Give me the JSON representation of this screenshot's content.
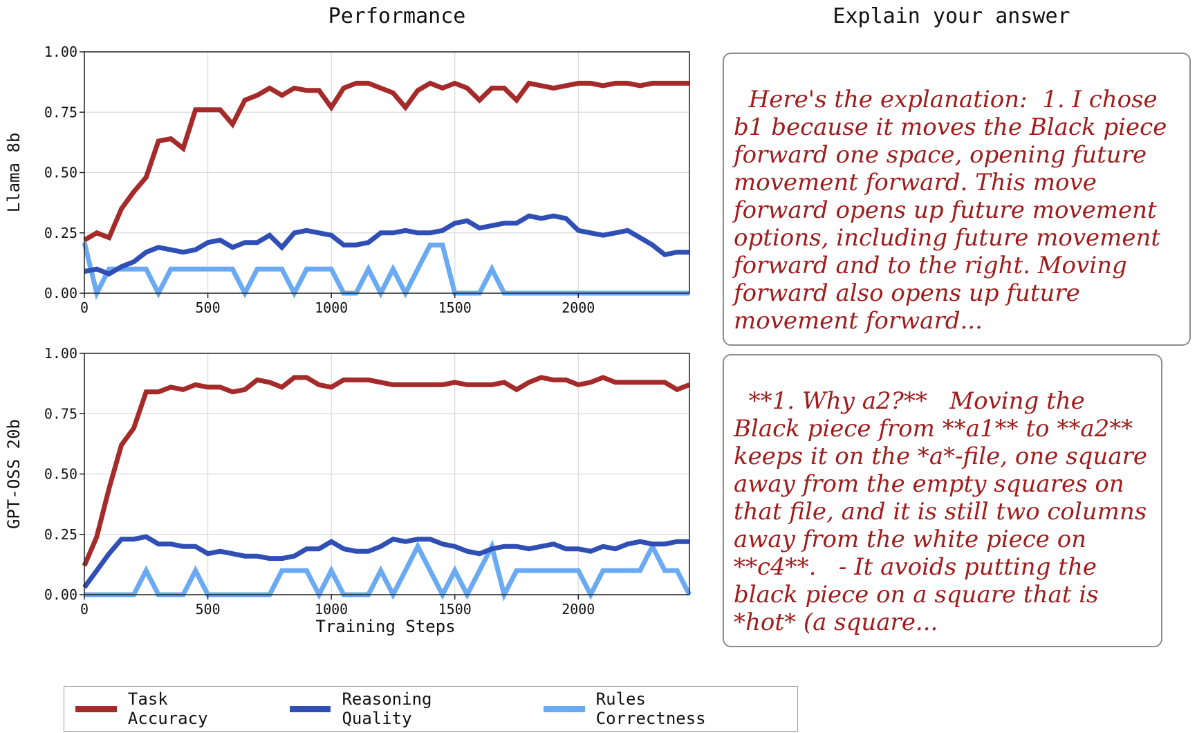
{
  "headers": {
    "left": "Performance",
    "right": "Explain your answer"
  },
  "colors": {
    "task": "#a52a2a",
    "reasoning": "#2f4fb5",
    "rules": "#6aaaf2"
  },
  "legend": [
    {
      "key": "task",
      "label": "Task Accuracy"
    },
    {
      "key": "reasoning",
      "label": "Reasoning Quality"
    },
    {
      "key": "rules",
      "label": "Rules Correctness"
    }
  ],
  "quotes": [
    "Here's the explanation:  1. I chose b1 because it moves the Black piece forward one space, opening future movement forward. This move forward opens up future movement options, including future movement forward and to the right. Moving forward also opens up future movement forward...",
    "**1. Why a2?**   Moving the Black piece from **a1** to **a2** keeps it on the *a*-file, one square away from the empty squares on that file, and it is still two columns away from the white piece on **c4**.   - It avoids putting the black piece on a square that is *hot* (a square..."
  ],
  "chart_data": [
    {
      "type": "line",
      "ylabel": "Llama 8b",
      "xlabel": "",
      "xlim": [
        0,
        2450
      ],
      "ylim": [
        0,
        1
      ],
      "xticks": [
        0,
        500,
        1000,
        1500,
        2000
      ],
      "yticks": [
        "0.00",
        "0.25",
        "0.50",
        "0.75",
        "1.00"
      ],
      "grid": true,
      "x": [
        0,
        50,
        100,
        150,
        200,
        250,
        300,
        350,
        400,
        450,
        500,
        550,
        600,
        650,
        700,
        750,
        800,
        850,
        900,
        950,
        1000,
        1050,
        1100,
        1150,
        1200,
        1250,
        1300,
        1350,
        1400,
        1450,
        1500,
        1550,
        1600,
        1650,
        1700,
        1750,
        1800,
        1850,
        1900,
        1950,
        2000,
        2050,
        2100,
        2150,
        2200,
        2250,
        2300,
        2350,
        2400,
        2450
      ],
      "series": [
        {
          "name": "Task Accuracy",
          "key": "task",
          "values": [
            0.22,
            0.25,
            0.23,
            0.35,
            0.42,
            0.48,
            0.63,
            0.64,
            0.6,
            0.76,
            0.76,
            0.76,
            0.7,
            0.8,
            0.82,
            0.85,
            0.82,
            0.85,
            0.84,
            0.84,
            0.77,
            0.85,
            0.87,
            0.87,
            0.85,
            0.83,
            0.77,
            0.84,
            0.87,
            0.85,
            0.87,
            0.85,
            0.8,
            0.85,
            0.85,
            0.8,
            0.87,
            0.86,
            0.85,
            0.86,
            0.87,
            0.87,
            0.86,
            0.87,
            0.87,
            0.86,
            0.87,
            0.87,
            0.87,
            0.87
          ]
        },
        {
          "name": "Reasoning Quality",
          "key": "reasoning",
          "values": [
            0.09,
            0.1,
            0.08,
            0.11,
            0.13,
            0.17,
            0.19,
            0.18,
            0.17,
            0.18,
            0.21,
            0.22,
            0.19,
            0.21,
            0.21,
            0.24,
            0.19,
            0.25,
            0.26,
            0.25,
            0.24,
            0.2,
            0.2,
            0.21,
            0.25,
            0.25,
            0.26,
            0.25,
            0.25,
            0.26,
            0.29,
            0.3,
            0.27,
            0.28,
            0.29,
            0.29,
            0.32,
            0.31,
            0.32,
            0.31,
            0.26,
            0.25,
            0.24,
            0.25,
            0.26,
            0.23,
            0.2,
            0.16,
            0.17,
            0.17
          ]
        },
        {
          "name": "Rules Correctness",
          "key": "rules",
          "values": [
            0.21,
            0.0,
            0.1,
            0.1,
            0.1,
            0.1,
            0.0,
            0.1,
            0.1,
            0.1,
            0.1,
            0.1,
            0.1,
            0.0,
            0.1,
            0.1,
            0.1,
            0.0,
            0.1,
            0.1,
            0.1,
            0.0,
            0.0,
            0.1,
            0.0,
            0.1,
            0.0,
            0.1,
            0.2,
            0.2,
            0.0,
            0.0,
            0.0,
            0.1,
            0.0,
            0.0,
            0.0,
            0.0,
            0.0,
            0.0,
            0.0,
            0.0,
            0.0,
            0.0,
            0.0,
            0.0,
            0.0,
            0.0,
            0.0,
            0.0
          ]
        }
      ]
    },
    {
      "type": "line",
      "ylabel": "GPT-OSS 20b",
      "xlabel": "Training Steps",
      "xlim": [
        0,
        2450
      ],
      "ylim": [
        0,
        1
      ],
      "xticks": [
        0,
        500,
        1000,
        1500,
        2000
      ],
      "yticks": [
        "0.00",
        "0.25",
        "0.50",
        "0.75",
        "1.00"
      ],
      "grid": true,
      "x": [
        0,
        50,
        100,
        150,
        200,
        250,
        300,
        350,
        400,
        450,
        500,
        550,
        600,
        650,
        700,
        750,
        800,
        850,
        900,
        950,
        1000,
        1050,
        1100,
        1150,
        1200,
        1250,
        1300,
        1350,
        1400,
        1450,
        1500,
        1550,
        1600,
        1650,
        1700,
        1750,
        1800,
        1850,
        1900,
        1950,
        2000,
        2050,
        2100,
        2150,
        2200,
        2250,
        2300,
        2350,
        2400,
        2450
      ],
      "series": [
        {
          "name": "Task Accuracy",
          "key": "task",
          "values": [
            0.12,
            0.24,
            0.44,
            0.62,
            0.69,
            0.84,
            0.84,
            0.86,
            0.85,
            0.87,
            0.86,
            0.86,
            0.84,
            0.85,
            0.89,
            0.88,
            0.86,
            0.9,
            0.9,
            0.87,
            0.86,
            0.89,
            0.89,
            0.89,
            0.88,
            0.87,
            0.87,
            0.87,
            0.87,
            0.87,
            0.88,
            0.87,
            0.87,
            0.87,
            0.88,
            0.85,
            0.88,
            0.9,
            0.89,
            0.89,
            0.87,
            0.88,
            0.9,
            0.88,
            0.88,
            0.88,
            0.88,
            0.88,
            0.85,
            0.87
          ]
        },
        {
          "name": "Reasoning Quality",
          "key": "reasoning",
          "values": [
            0.03,
            0.1,
            0.17,
            0.23,
            0.23,
            0.24,
            0.21,
            0.21,
            0.2,
            0.2,
            0.17,
            0.18,
            0.17,
            0.16,
            0.16,
            0.15,
            0.15,
            0.16,
            0.19,
            0.19,
            0.22,
            0.19,
            0.18,
            0.18,
            0.2,
            0.23,
            0.22,
            0.23,
            0.23,
            0.21,
            0.2,
            0.18,
            0.17,
            0.19,
            0.2,
            0.2,
            0.19,
            0.2,
            0.21,
            0.19,
            0.19,
            0.18,
            0.2,
            0.19,
            0.21,
            0.22,
            0.21,
            0.21,
            0.22,
            0.22
          ]
        },
        {
          "name": "Rules Correctness",
          "key": "rules",
          "values": [
            0.0,
            0.0,
            0.0,
            0.0,
            0.0,
            0.1,
            0.0,
            0.0,
            0.0,
            0.1,
            0.0,
            0.0,
            0.0,
            0.0,
            0.0,
            0.0,
            0.1,
            0.1,
            0.1,
            0.0,
            0.1,
            0.0,
            0.0,
            0.0,
            0.1,
            0.0,
            0.1,
            0.2,
            0.1,
            0.0,
            0.1,
            0.0,
            0.1,
            0.2,
            0.0,
            0.1,
            0.1,
            0.1,
            0.1,
            0.1,
            0.1,
            0.0,
            0.1,
            0.1,
            0.1,
            0.1,
            0.2,
            0.1,
            0.1,
            0.0
          ]
        }
      ]
    }
  ]
}
